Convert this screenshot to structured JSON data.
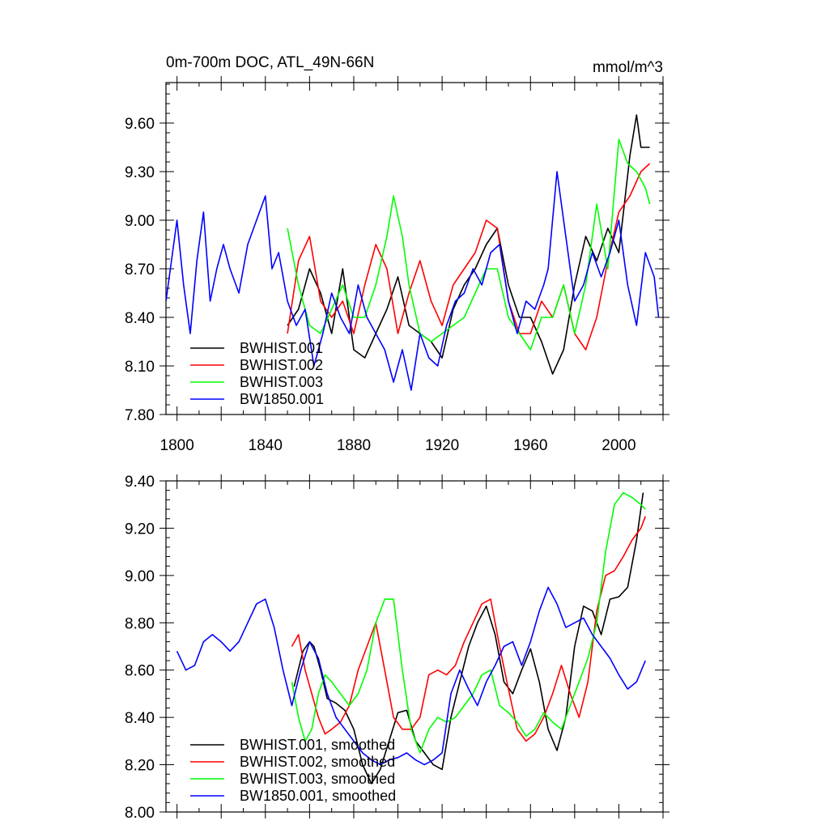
{
  "chart_data": [
    {
      "type": "line",
      "title": "0m-700m DOC, ATL_49N-66N",
      "units": "mmol/m^3",
      "xlim": [
        1795,
        2020
      ],
      "ylim": [
        7.8,
        9.85
      ],
      "x_ticks": [
        1800,
        1840,
        1880,
        1920,
        1960,
        2000
      ],
      "y_ticks": [
        7.8,
        8.1,
        8.4,
        8.7,
        9.0,
        9.3,
        9.6
      ],
      "y_tick_labels": [
        "7.80",
        "8.10",
        "8.40",
        "8.70",
        "9.00",
        "9.30",
        "9.60"
      ],
      "legend_position": "bottom-left",
      "series": [
        {
          "name": "BWHIST.001",
          "color": "#000000",
          "x": [
            1850,
            1855,
            1860,
            1865,
            1870,
            1875,
            1880,
            1885,
            1890,
            1895,
            1900,
            1905,
            1910,
            1915,
            1920,
            1925,
            1930,
            1935,
            1940,
            1945,
            1950,
            1955,
            1960,
            1965,
            1970,
            1975,
            1980,
            1985,
            1990,
            1995,
            2000,
            2005,
            2008,
            2010,
            2014
          ],
          "y": [
            8.35,
            8.45,
            8.7,
            8.55,
            8.3,
            8.7,
            8.2,
            8.15,
            8.3,
            8.45,
            8.65,
            8.35,
            8.3,
            8.25,
            8.15,
            8.45,
            8.6,
            8.7,
            8.85,
            8.95,
            8.6,
            8.4,
            8.4,
            8.25,
            8.05,
            8.2,
            8.6,
            8.9,
            8.75,
            8.95,
            8.8,
            9.4,
            9.65,
            9.45,
            9.45
          ]
        },
        {
          "name": "BWHIST.002",
          "color": "#ff0000",
          "x": [
            1850,
            1855,
            1860,
            1865,
            1870,
            1875,
            1880,
            1885,
            1890,
            1895,
            1900,
            1905,
            1910,
            1915,
            1920,
            1925,
            1930,
            1935,
            1940,
            1945,
            1950,
            1955,
            1960,
            1965,
            1970,
            1975,
            1980,
            1985,
            1990,
            1995,
            2000,
            2005,
            2010,
            2014
          ],
          "y": [
            8.3,
            8.75,
            8.9,
            8.5,
            8.4,
            8.5,
            8.3,
            8.6,
            8.85,
            8.7,
            8.3,
            8.55,
            8.75,
            8.5,
            8.35,
            8.6,
            8.7,
            8.8,
            9.0,
            8.95,
            8.5,
            8.3,
            8.3,
            8.5,
            8.4,
            8.6,
            8.3,
            8.2,
            8.4,
            8.75,
            9.05,
            9.15,
            9.3,
            9.35
          ]
        },
        {
          "name": "BWHIST.003",
          "color": "#00ff00",
          "x": [
            1850,
            1855,
            1860,
            1865,
            1870,
            1875,
            1880,
            1885,
            1890,
            1895,
            1898,
            1902,
            1905,
            1910,
            1915,
            1920,
            1925,
            1930,
            1935,
            1940,
            1945,
            1950,
            1955,
            1960,
            1965,
            1970,
            1975,
            1980,
            1985,
            1990,
            1995,
            2000,
            2004,
            2008,
            2012,
            2014
          ],
          "y": [
            8.95,
            8.6,
            8.35,
            8.3,
            8.45,
            8.6,
            8.4,
            8.4,
            8.6,
            8.9,
            9.15,
            8.9,
            8.6,
            8.3,
            8.25,
            8.3,
            8.35,
            8.4,
            8.55,
            8.7,
            8.7,
            8.4,
            8.3,
            8.2,
            8.4,
            8.4,
            8.6,
            8.3,
            8.6,
            9.1,
            8.7,
            9.5,
            9.35,
            9.3,
            9.2,
            9.1
          ]
        },
        {
          "name": "BW1850.001",
          "color": "#0000ff",
          "x": [
            1795,
            1800,
            1803,
            1806,
            1809,
            1812,
            1815,
            1818,
            1821,
            1824,
            1828,
            1832,
            1836,
            1840,
            1843,
            1846,
            1850,
            1854,
            1858,
            1862,
            1866,
            1870,
            1874,
            1878,
            1882,
            1886,
            1890,
            1894,
            1898,
            1902,
            1906,
            1910,
            1914,
            1918,
            1922,
            1926,
            1930,
            1934,
            1938,
            1942,
            1946,
            1950,
            1954,
            1958,
            1962,
            1966,
            1968,
            1972,
            1976,
            1980,
            1984,
            1988,
            1992,
            1996,
            2000,
            2004,
            2008,
            2012,
            2016,
            2018
          ],
          "y": [
            8.5,
            9.0,
            8.6,
            8.3,
            8.75,
            9.05,
            8.5,
            8.7,
            8.85,
            8.7,
            8.55,
            8.85,
            9.0,
            9.15,
            8.7,
            8.8,
            8.5,
            8.35,
            8.45,
            8.1,
            8.3,
            8.55,
            8.4,
            8.3,
            8.6,
            8.4,
            8.3,
            8.2,
            8.0,
            8.2,
            7.95,
            8.3,
            8.15,
            8.1,
            8.35,
            8.5,
            8.55,
            8.7,
            8.6,
            8.8,
            8.85,
            8.5,
            8.3,
            8.5,
            8.45,
            8.6,
            8.7,
            9.3,
            8.9,
            8.5,
            8.6,
            8.8,
            8.65,
            8.8,
            9.0,
            8.6,
            8.35,
            8.8,
            8.65,
            8.4
          ]
        }
      ]
    },
    {
      "type": "line",
      "title": "",
      "xlim": [
        1795,
        2020
      ],
      "ylim": [
        8.0,
        9.4
      ],
      "y_ticks": [
        8.0,
        8.2,
        8.4,
        8.6,
        8.8,
        9.0,
        9.2,
        9.4
      ],
      "y_tick_labels": [
        "8.00",
        "8.20",
        "8.40",
        "8.60",
        "8.80",
        "9.00",
        "9.20",
        "9.40"
      ],
      "legend_position": "bottom-left",
      "series": [
        {
          "name": "BWHIST.001, smoothed",
          "color": "#000000",
          "x": [
            1853,
            1857,
            1860,
            1862,
            1865,
            1868,
            1872,
            1876,
            1880,
            1884,
            1888,
            1892,
            1896,
            1900,
            1904,
            1908,
            1912,
            1916,
            1920,
            1924,
            1928,
            1932,
            1936,
            1940,
            1944,
            1948,
            1952,
            1956,
            1960,
            1964,
            1968,
            1972,
            1976,
            1980,
            1984,
            1988,
            1992,
            1996,
            2000,
            2004,
            2008,
            2011
          ],
          "y": [
            8.53,
            8.68,
            8.72,
            8.7,
            8.6,
            8.48,
            8.46,
            8.43,
            8.35,
            8.2,
            8.12,
            8.18,
            8.3,
            8.42,
            8.43,
            8.3,
            8.25,
            8.2,
            8.18,
            8.4,
            8.55,
            8.7,
            8.8,
            8.87,
            8.75,
            8.55,
            8.5,
            8.6,
            8.69,
            8.55,
            8.35,
            8.26,
            8.4,
            8.7,
            8.87,
            8.85,
            8.75,
            8.9,
            8.91,
            8.95,
            9.15,
            9.35
          ]
        },
        {
          "name": "BWHIST.002, smoothed",
          "color": "#ff0000",
          "x": [
            1852,
            1855,
            1858,
            1861,
            1864,
            1867,
            1870,
            1874,
            1878,
            1882,
            1886,
            1890,
            1894,
            1898,
            1902,
            1906,
            1910,
            1914,
            1918,
            1922,
            1926,
            1930,
            1934,
            1938,
            1942,
            1946,
            1950,
            1954,
            1958,
            1962,
            1966,
            1970,
            1974,
            1978,
            1982,
            1986,
            1990,
            1994,
            1998,
            2002,
            2006,
            2010,
            2012
          ],
          "y": [
            8.7,
            8.75,
            8.6,
            8.5,
            8.4,
            8.33,
            8.35,
            8.38,
            8.45,
            8.6,
            8.7,
            8.8,
            8.6,
            8.4,
            8.35,
            8.35,
            8.4,
            8.58,
            8.6,
            8.58,
            8.62,
            8.72,
            8.8,
            8.88,
            8.9,
            8.7,
            8.52,
            8.35,
            8.3,
            8.33,
            8.4,
            8.5,
            8.62,
            8.5,
            8.4,
            8.55,
            8.85,
            9.0,
            9.02,
            9.08,
            9.15,
            9.2,
            9.25
          ]
        },
        {
          "name": "BWHIST.003, smoothed",
          "color": "#00ff00",
          "x": [
            1852,
            1855,
            1858,
            1861,
            1864,
            1867,
            1870,
            1874,
            1878,
            1882,
            1886,
            1890,
            1894,
            1898,
            1902,
            1906,
            1910,
            1914,
            1918,
            1922,
            1926,
            1930,
            1934,
            1938,
            1942,
            1946,
            1950,
            1954,
            1958,
            1962,
            1966,
            1970,
            1974,
            1978,
            1982,
            1986,
            1990,
            1994,
            1998,
            2002,
            2006,
            2010,
            2012
          ],
          "y": [
            8.55,
            8.4,
            8.3,
            8.35,
            8.5,
            8.58,
            8.55,
            8.5,
            8.45,
            8.5,
            8.6,
            8.8,
            8.9,
            8.9,
            8.6,
            8.35,
            8.25,
            8.35,
            8.4,
            8.38,
            8.4,
            8.45,
            8.5,
            8.58,
            8.6,
            8.45,
            8.42,
            8.38,
            8.32,
            8.35,
            8.42,
            8.38,
            8.35,
            8.45,
            8.55,
            8.65,
            8.8,
            9.1,
            9.3,
            9.35,
            9.33,
            9.3,
            9.28
          ]
        },
        {
          "name": "BW1850.001, smoothed",
          "color": "#0000ff",
          "x": [
            1800,
            1804,
            1808,
            1812,
            1816,
            1820,
            1824,
            1828,
            1832,
            1836,
            1840,
            1844,
            1848,
            1852,
            1856,
            1860,
            1864,
            1868,
            1872,
            1876,
            1880,
            1884,
            1888,
            1892,
            1896,
            1900,
            1904,
            1908,
            1912,
            1916,
            1920,
            1924,
            1928,
            1932,
            1936,
            1940,
            1944,
            1948,
            1952,
            1956,
            1960,
            1964,
            1968,
            1972,
            1976,
            1980,
            1984,
            1988,
            1992,
            1996,
            2000,
            2004,
            2008,
            2012
          ],
          "y": [
            8.68,
            8.6,
            8.62,
            8.72,
            8.75,
            8.72,
            8.68,
            8.72,
            8.8,
            8.88,
            8.9,
            8.78,
            8.6,
            8.45,
            8.6,
            8.72,
            8.65,
            8.5,
            8.4,
            8.35,
            8.3,
            8.25,
            8.22,
            8.2,
            8.22,
            8.23,
            8.25,
            8.22,
            8.2,
            8.22,
            8.25,
            8.5,
            8.6,
            8.52,
            8.45,
            8.55,
            8.62,
            8.7,
            8.72,
            8.62,
            8.72,
            8.85,
            8.95,
            8.88,
            8.78,
            8.8,
            8.82,
            8.75,
            8.7,
            8.65,
            8.58,
            8.52,
            8.55,
            8.64
          ]
        }
      ]
    }
  ]
}
